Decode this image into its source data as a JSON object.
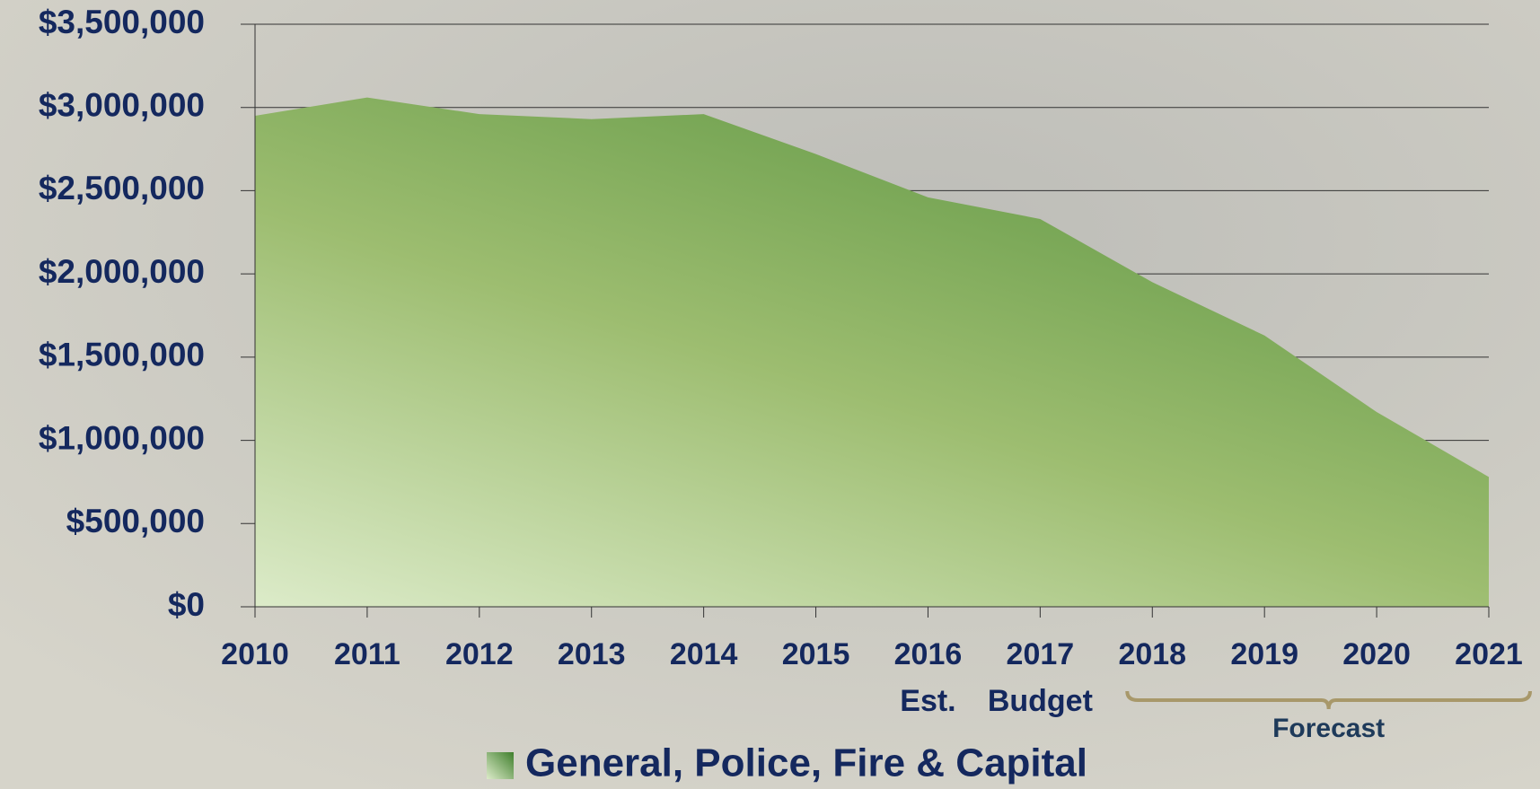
{
  "chart_data": {
    "type": "area",
    "categories": [
      "2010",
      "2011",
      "2012",
      "2013",
      "2014",
      "2015",
      "2016",
      "2017",
      "2018",
      "2019",
      "2020",
      "2021"
    ],
    "series": [
      {
        "name": "General, Police, Fire & Capital",
        "color": "#6a9e4c",
        "values": [
          2950000,
          3060000,
          2960000,
          2930000,
          2960000,
          2720000,
          2460000,
          2330000,
          1950000,
          1630000,
          1170000,
          780000
        ]
      }
    ],
    "ylim": [
      0,
      3500000
    ],
    "yticks": [
      {
        "value": 0,
        "label": "$0"
      },
      {
        "value": 500000,
        "label": "$500,000"
      },
      {
        "value": 1000000,
        "label": "$1,000,000"
      },
      {
        "value": 1500000,
        "label": "$1,500,000"
      },
      {
        "value": 2000000,
        "label": "$2,000,000"
      },
      {
        "value": 2500000,
        "label": "$2,500,000"
      },
      {
        "value": 3000000,
        "label": "$3,000,000"
      },
      {
        "value": 3500000,
        "label": "$3,500,000"
      }
    ],
    "grid": true,
    "legend": "bottom",
    "annotations": [
      {
        "text": "Est.",
        "at": "2016"
      },
      {
        "text": "Budget",
        "at": "2017"
      }
    ],
    "bracket": {
      "text": "Forecast",
      "from": "2018",
      "to": "2021"
    }
  }
}
